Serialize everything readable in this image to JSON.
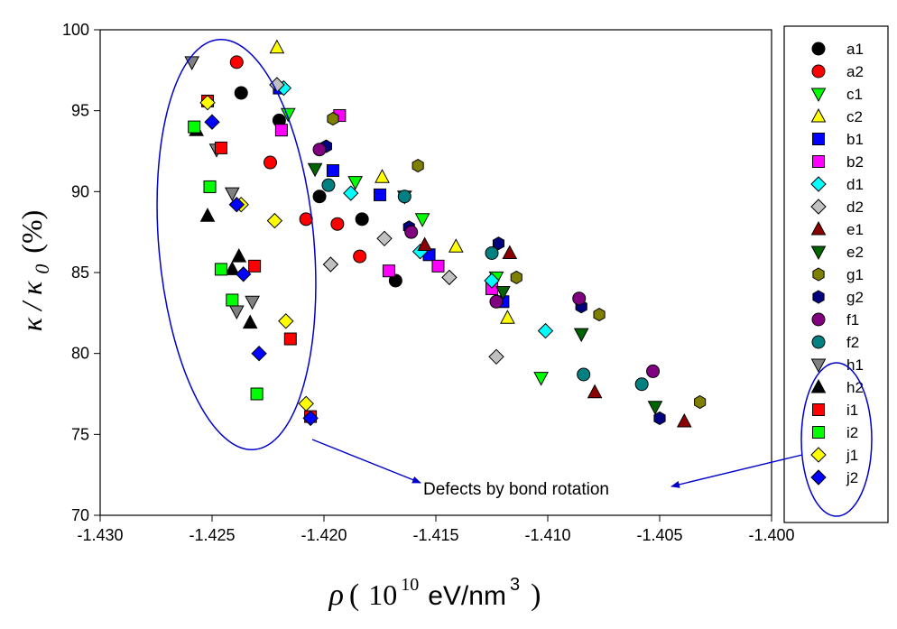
{
  "chart_data": {
    "type": "scatter",
    "title": "",
    "xlabel": {
      "greek": "ρ",
      "open": "(",
      "base": "10",
      "exp": "10",
      "unit": "eV/nm",
      "unit_exp": "3",
      "close": ")"
    },
    "ylabel": {
      "kappa": "κ",
      "sep": "/",
      "kappa0": "κ",
      "sub": "0",
      "unit": "(%)"
    },
    "xlim": [
      -1.43,
      -1.4
    ],
    "ylim": [
      70,
      100
    ],
    "xticks": [
      -1.43,
      -1.425,
      -1.42,
      -1.415,
      -1.41,
      -1.405,
      -1.4
    ],
    "xtick_labels": [
      "-1.430",
      "-1.425",
      "-1.420",
      "-1.415",
      "-1.410",
      "-1.405",
      "-1.400"
    ],
    "yticks": [
      70,
      75,
      80,
      85,
      90,
      95,
      100
    ],
    "ytick_labels": [
      "70",
      "75",
      "80",
      "85",
      "90",
      "95",
      "100"
    ],
    "legend_position": "right-outside",
    "annotation": "Defects by bond rotation",
    "series": [
      {
        "name": "a1",
        "marker": "circle",
        "color": "#000000",
        "points": [
          [
            -1.4237,
            96.1
          ],
          [
            -1.422,
            94.4
          ],
          [
            -1.4202,
            89.7
          ],
          [
            -1.4183,
            88.3
          ],
          [
            -1.4168,
            84.5
          ]
        ]
      },
      {
        "name": "a2",
        "marker": "circle",
        "color": "#ff0000",
        "points": [
          [
            -1.4239,
            98.0
          ],
          [
            -1.4224,
            91.8
          ],
          [
            -1.4208,
            88.3
          ],
          [
            -1.4194,
            88.0
          ],
          [
            -1.4184,
            86.0
          ]
        ]
      },
      {
        "name": "c1",
        "marker": "triangle-down",
        "color": "#00ff00",
        "points": [
          [
            -1.4216,
            94.8
          ],
          [
            -1.4186,
            90.6
          ],
          [
            -1.4156,
            88.3
          ],
          [
            -1.4123,
            84.7
          ],
          [
            -1.4103,
            78.5
          ]
        ]
      },
      {
        "name": "c2",
        "marker": "triangle-up",
        "color": "#ffff00",
        "points": [
          [
            -1.4221,
            98.9
          ],
          [
            -1.4174,
            90.9
          ],
          [
            -1.4141,
            86.6
          ],
          [
            -1.4118,
            82.2
          ]
        ]
      },
      {
        "name": "b1",
        "marker": "square",
        "color": "#0000ff",
        "points": [
          [
            -1.422,
            96.4
          ],
          [
            -1.4196,
            91.3
          ],
          [
            -1.4175,
            89.8
          ],
          [
            -1.4153,
            86.1
          ],
          [
            -1.412,
            83.2
          ]
        ]
      },
      {
        "name": "b2",
        "marker": "square",
        "color": "#ff00ff",
        "points": [
          [
            -1.4219,
            93.8
          ],
          [
            -1.4193,
            94.7
          ],
          [
            -1.4171,
            85.1
          ],
          [
            -1.4149,
            85.4
          ],
          [
            -1.4125,
            84.0
          ]
        ]
      },
      {
        "name": "d1",
        "marker": "diamond",
        "color": "#00ffff",
        "points": [
          [
            -1.4218,
            96.4
          ],
          [
            -1.4188,
            89.9
          ],
          [
            -1.4157,
            86.3
          ],
          [
            -1.4125,
            84.5
          ],
          [
            -1.4101,
            81.4
          ]
        ]
      },
      {
        "name": "d2",
        "marker": "diamond",
        "color": "#c0c0c0",
        "points": [
          [
            -1.4221,
            96.6
          ],
          [
            -1.4197,
            85.5
          ],
          [
            -1.4173,
            87.1
          ],
          [
            -1.4144,
            84.7
          ],
          [
            -1.4123,
            79.8
          ]
        ]
      },
      {
        "name": "e1",
        "marker": "triangle-up",
        "color": "#8b0000",
        "points": [
          [
            -1.4155,
            86.7
          ],
          [
            -1.4117,
            86.2
          ],
          [
            -1.4079,
            77.6
          ],
          [
            -1.4039,
            75.8
          ]
        ]
      },
      {
        "name": "e2",
        "marker": "triangle-down",
        "color": "#006400",
        "points": [
          [
            -1.4204,
            91.4
          ],
          [
            -1.4164,
            89.7
          ],
          [
            -1.412,
            83.8
          ],
          [
            -1.4085,
            81.2
          ],
          [
            -1.4052,
            76.7
          ]
        ]
      },
      {
        "name": "g1",
        "marker": "hexagon",
        "color": "#808000",
        "points": [
          [
            -1.4196,
            94.5
          ],
          [
            -1.4158,
            91.6
          ],
          [
            -1.4114,
            84.7
          ],
          [
            -1.4077,
            82.4
          ],
          [
            -1.4032,
            77.0
          ]
        ]
      },
      {
        "name": "g2",
        "marker": "hexagon",
        "color": "#000080",
        "points": [
          [
            -1.4199,
            92.8
          ],
          [
            -1.4162,
            87.8
          ],
          [
            -1.4122,
            86.8
          ],
          [
            -1.4085,
            82.9
          ],
          [
            -1.405,
            76.0
          ]
        ]
      },
      {
        "name": "f1",
        "marker": "circle",
        "color": "#800080",
        "points": [
          [
            -1.4202,
            92.6
          ],
          [
            -1.4161,
            87.5
          ],
          [
            -1.4123,
            83.2
          ],
          [
            -1.4086,
            83.4
          ],
          [
            -1.4053,
            78.9
          ]
        ]
      },
      {
        "name": "f2",
        "marker": "circle",
        "color": "#008080",
        "points": [
          [
            -1.4198,
            90.4
          ],
          [
            -1.4164,
            89.7
          ],
          [
            -1.4125,
            86.2
          ],
          [
            -1.4084,
            78.7
          ],
          [
            -1.4058,
            78.1
          ]
        ]
      },
      {
        "name": "h1",
        "marker": "triangle-down",
        "color": "#808080",
        "points": [
          [
            -1.4259,
            98.0
          ],
          [
            -1.4248,
            92.6
          ],
          [
            -1.4241,
            89.9
          ],
          [
            -1.4239,
            82.6
          ],
          [
            -1.4232,
            83.2
          ]
        ]
      },
      {
        "name": "h2",
        "marker": "triangle-up",
        "color": "#000000",
        "points": [
          [
            -1.4257,
            93.8
          ],
          [
            -1.4252,
            88.5
          ],
          [
            -1.4238,
            86.0
          ],
          [
            -1.4241,
            85.2
          ],
          [
            -1.4233,
            81.9
          ]
        ]
      },
      {
        "name": "i1",
        "marker": "square",
        "color": "#ff0000",
        "points": [
          [
            -1.4252,
            95.6
          ],
          [
            -1.4246,
            92.7
          ],
          [
            -1.4231,
            85.4
          ],
          [
            -1.4215,
            80.9
          ],
          [
            -1.4206,
            76.1
          ]
        ]
      },
      {
        "name": "i2",
        "marker": "square",
        "color": "#00ff00",
        "points": [
          [
            -1.4258,
            94.0
          ],
          [
            -1.4251,
            90.3
          ],
          [
            -1.4246,
            85.2
          ],
          [
            -1.4241,
            83.3
          ],
          [
            -1.423,
            77.5
          ]
        ]
      },
      {
        "name": "j1",
        "marker": "diamond",
        "color": "#ffff00",
        "points": [
          [
            -1.4252,
            95.5
          ],
          [
            -1.4237,
            89.2
          ],
          [
            -1.4222,
            88.2
          ],
          [
            -1.4217,
            82.0
          ],
          [
            -1.4208,
            76.9
          ]
        ]
      },
      {
        "name": "j2",
        "marker": "diamond",
        "color": "#0000ff",
        "points": [
          [
            -1.425,
            94.3
          ],
          [
            -1.4239,
            89.2
          ],
          [
            -1.4236,
            84.9
          ],
          [
            -1.4229,
            80.0
          ],
          [
            -1.4206,
            76.0
          ]
        ]
      }
    ]
  }
}
